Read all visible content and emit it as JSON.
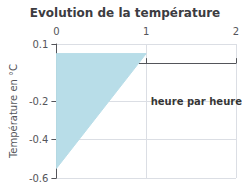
{
  "chart_data": {
    "type": "area",
    "title": "Evolution de la température",
    "ylabel": "Température en °C",
    "x": [
      0,
      0,
      1
    ],
    "values": [
      0.05,
      -0.55,
      0.05
    ],
    "color": "#b8dde8",
    "xlim": [
      0,
      2
    ],
    "ylim": [
      -0.6,
      0.1
    ],
    "xticks": [
      0,
      1,
      2
    ],
    "yticks": [
      -0.6,
      -0.4,
      -0.2,
      0.1
    ],
    "grid": true,
    "annotations": [
      {
        "text": "heure par heure",
        "x": 1.05,
        "y": -0.2
      }
    ]
  }
}
